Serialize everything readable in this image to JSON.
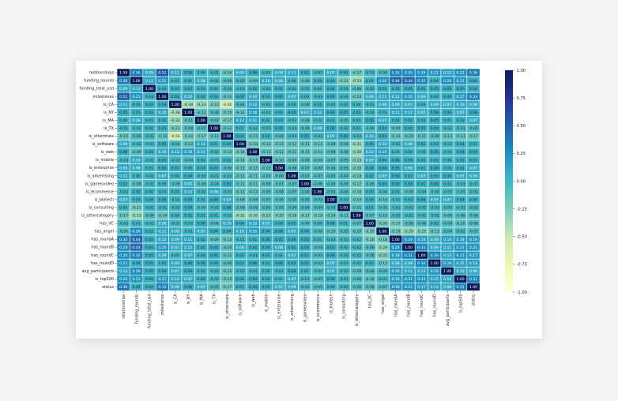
{
  "chart_data": {
    "type": "heatmap",
    "title": "",
    "xlabel": "",
    "ylabel": "",
    "labels": [
      "relationships",
      "funding_rounds",
      "funding_total_usd",
      "milestones",
      "is_CA",
      "is_NY",
      "is_MA",
      "is_TX",
      "is_otherstate",
      "is_software",
      "is_web",
      "is_mobile",
      "is_enterprise",
      "is_advertising",
      "is_gamesvideo",
      "is_ecommerce",
      "is_biotech",
      "is_consulting",
      "is_othercategory",
      "has_VC",
      "has_angel",
      "has_roundA",
      "has_roundB",
      "has_roundC",
      "has_roundD",
      "avg_participants",
      "is_top500",
      "status"
    ],
    "value_range": [
      -1,
      1
    ],
    "colorbar_ticks": [
      "1.00",
      "0.75",
      "0.50",
      "0.25",
      "0.00",
      "-0.25",
      "-0.50",
      "-0.75",
      "-1.00"
    ],
    "colorscale": [
      "#ffffd9",
      "#edf8b1",
      "#c7e9b4",
      "#7fcdbb",
      "#41b6c4",
      "#1d91c0",
      "#225ea8",
      "#253494",
      "#081d58"
    ],
    "values": [
      [
        1.0,
        0.36,
        0.09,
        0.51,
        0.11,
        0.05,
        0.0,
        -0.01,
        -0.16,
        0.09,
        0.06,
        -0.03,
        0.09,
        0.11,
        0.02,
        -0.03,
        0.07,
        0.0,
        -0.17,
        -0.03,
        -0.06,
        0.32,
        0.29,
        0.26,
        0.21,
        0.12,
        0.22,
        0.36
      ],
      [
        0.36,
        1.0,
        0.12,
        0.21,
        0.01,
        0.01,
        0.08,
        -0.02,
        -0.06,
        -0.02,
        -0.09,
        0.1,
        0.08,
        0.0,
        -0.08,
        0.02,
        0.03,
        -0.21,
        -0.33,
        0.01,
        0.26,
        0.44,
        0.44,
        0.32,
        0.04,
        0.26,
        0.21,
        0.04
      ],
      [
        0.09,
        0.12,
        1.0,
        0.03,
        0.02,
        0.02,
        0.01,
        0.0,
        -0.02,
        -0.03,
        0.02,
        -0.02,
        0.01,
        -0.02,
        -0.01,
        0.0,
        0.04,
        -0.01,
        -0.06,
        -0.02,
        0.02,
        0.05,
        0.05,
        0.05,
        0.05,
        0.05,
        0.05,
        0.04
      ],
      [
        0.51,
        0.21,
        0.03,
        1.0,
        0.04,
        0.1,
        0.02,
        0.03,
        -0.12,
        0.05,
        0.1,
        0.03,
        0.05,
        0.07,
        0.0,
        -0.01,
        0.05,
        -0.01,
        -0.14,
        0.09,
        0.11,
        0.12,
        0.2,
        0.09,
        0.02,
        0.04,
        0.17,
        0.33
      ],
      [
        0.11,
        0.01,
        0.02,
        0.04,
        1.0,
        -0.38,
        -0.33,
        -0.23,
        -0.56,
        -0.04,
        0.12,
        -0.02,
        0.03,
        0.0,
        -0.06,
        0.02,
        -0.02,
        -0.02,
        0.0,
        -0.01,
        0.08,
        0.09,
        0.07,
        0.0,
        0.09,
        0.07,
        0.1,
        0.08
      ],
      [
        0.05,
        0.01,
        0.02,
        0.1,
        -0.38,
        1.0,
        -0.11,
        -0.08,
        -0.19,
        -0.12,
        0.16,
        -0.04,
        0.0,
        0.04,
        0.07,
        0.12,
        0.04,
        0.05,
        0.02,
        -0.02,
        -0.01,
        0.11,
        0.11,
        0.07,
        0.06,
        0.04,
        0.07,
        0.06
      ],
      [
        0.0,
        0.08,
        0.01,
        0.02,
        -0.33,
        -0.11,
        1.0,
        -0.07,
        -0.17,
        0.13,
        0.11,
        0.02,
        0.03,
        -0.03,
        -0.08,
        -0.02,
        0.01,
        -0.05,
        0.01,
        0.06,
        0.07,
        0.02,
        0.02,
        0.02,
        0.05,
        0.01,
        0.03,
        0.07
      ],
      [
        -0.01,
        -0.02,
        0.0,
        0.03,
        -0.23,
        -0.08,
        -0.07,
        1.0,
        -0.12,
        0.01,
        -0.02,
        -0.03,
        0.05,
        -0.03,
        -0.04,
        0.08,
        0.06,
        -0.02,
        0.01,
        -0.06,
        0.04,
        -0.09,
        0.04,
        0.05,
        0.04,
        -0.02,
        -0.03,
        -0.05
      ],
      [
        -0.16,
        -0.06,
        -0.02,
        -0.12,
        -0.56,
        -0.19,
        -0.17,
        -0.12,
        1.0,
        0.04,
        -0.13,
        0.02,
        -0.06,
        -0.03,
        0.05,
        -0.03,
        0.07,
        0.06,
        -0.03,
        0.1,
        0.04,
        -0.13,
        -0.1,
        -0.11,
        -0.06,
        -0.13,
        -0.13,
        -0.17
      ],
      [
        0.09,
        -0.02,
        -0.03,
        0.05,
        -0.04,
        -0.12,
        0.13,
        0.01,
        0.04,
        1.0,
        -0.18,
        -0.14,
        -0.13,
        -0.12,
        -0.11,
        -0.13,
        -0.09,
        -0.08,
        -0.31,
        0.04,
        0.1,
        -0.01,
        0.08,
        0.02,
        0.03,
        -0.02,
        0.04,
        0.01
      ],
      [
        0.06,
        -0.09,
        0.02,
        0.1,
        0.12,
        0.16,
        0.11,
        -0.02,
        -0.13,
        -0.18,
        1.0,
        -0.13,
        -0.12,
        -0.11,
        -0.11,
        -0.12,
        -0.08,
        -0.06,
        -0.3,
        0.12,
        0.15,
        0.01,
        0.02,
        -0.01,
        0.06,
        -0.01,
        0.04,
        0.04
      ],
      [
        -0.03,
        0.1,
        -0.02,
        0.03,
        -0.02,
        -0.04,
        0.02,
        -0.03,
        0.02,
        -0.14,
        -0.13,
        1.0,
        -0.1,
        -0.09,
        -0.08,
        -0.09,
        -0.07,
        -0.05,
        -0.23,
        0.07,
        0.04,
        0.06,
        0.04,
        0.02,
        0.01,
        0.0,
        0.02,
        0.02
      ],
      [
        0.09,
        0.08,
        0.01,
        0.05,
        0.03,
        0.0,
        0.03,
        0.05,
        -0.06,
        -0.13,
        -0.12,
        -0.1,
        1.0,
        -0.08,
        -0.07,
        -0.08,
        -0.06,
        -0.05,
        -0.2,
        0.04,
        0.06,
        0.05,
        0.09,
        0.01,
        0.06,
        -0.01,
        0.01,
        0.07
      ],
      [
        0.11,
        0.0,
        -0.02,
        0.07,
        0.0,
        0.04,
        -0.03,
        -0.03,
        -0.03,
        -0.12,
        -0.11,
        -0.09,
        -0.08,
        1.0,
        -0.07,
        -0.07,
        -0.05,
        -0.04,
        -0.18,
        0.02,
        0.07,
        0.06,
        0.02,
        0.07,
        0.03,
        0.04,
        0.07,
        0.09
      ],
      [
        0.02,
        -0.08,
        -0.01,
        0.0,
        -0.06,
        0.07,
        -0.08,
        -0.04,
        0.05,
        -0.11,
        -0.11,
        -0.08,
        -0.07,
        -0.07,
        1.0,
        -0.06,
        -0.05,
        -0.04,
        -0.17,
        -0.06,
        0.04,
        0.05,
        0.04,
        0.02,
        0.05,
        0.01,
        -0.03,
        -0.03
      ],
      [
        -0.03,
        0.02,
        0.0,
        -0.01,
        0.02,
        0.12,
        -0.02,
        0.08,
        -0.03,
        -0.13,
        -0.12,
        -0.09,
        -0.08,
        -0.07,
        -0.06,
        1.0,
        -0.05,
        -0.04,
        -0.18,
        0.0,
        -0.06,
        0.01,
        -0.08,
        -0.04,
        -0.04,
        -0.05,
        -0.05,
        -0.05
      ],
      [
        0.07,
        0.03,
        0.04,
        0.05,
        -0.02,
        0.04,
        0.01,
        0.06,
        0.07,
        -0.09,
        -0.08,
        -0.07,
        -0.06,
        -0.05,
        -0.05,
        -0.05,
        1.0,
        -0.03,
        -0.14,
        0.04,
        -0.1,
        -0.03,
        0.03,
        0.06,
        0.07,
        0.07,
        0.04,
        0.0
      ],
      [
        0.0,
        -0.21,
        -0.01,
        -0.01,
        -0.02,
        0.05,
        -0.05,
        -0.02,
        0.06,
        -0.08,
        -0.06,
        -0.05,
        -0.05,
        -0.04,
        -0.04,
        -0.04,
        -0.03,
        1.0,
        -0.11,
        0.01,
        -0.05,
        -0.03,
        -0.02,
        -0.02,
        -0.03,
        -0.03,
        -0.01,
        -0.02
      ],
      [
        -0.17,
        -0.33,
        -0.06,
        -0.14,
        0.0,
        0.02,
        0.01,
        0.01,
        -0.03,
        -0.31,
        -0.3,
        -0.23,
        -0.2,
        -0.18,
        -0.17,
        -0.18,
        -0.14,
        -0.11,
        1.0,
        -0.07,
        -0.1,
        -0.02,
        -0.02,
        -0.02,
        -0.02,
        -0.09,
        -0.06,
        -0.06
      ],
      [
        -0.03,
        0.01,
        -0.02,
        0.09,
        -0.01,
        -0.02,
        0.06,
        -0.06,
        0.1,
        0.04,
        0.12,
        0.07,
        0.04,
        0.02,
        -0.06,
        0.0,
        0.04,
        0.01,
        -0.07,
        1.0,
        -0.2,
        -0.2,
        -0.06,
        -0.06,
        0.02,
        -0.04,
        -0.1,
        -0.06
      ],
      [
        -0.06,
        0.26,
        0.02,
        0.11,
        0.08,
        -0.01,
        0.07,
        0.04,
        0.04,
        0.1,
        0.15,
        0.04,
        0.06,
        0.07,
        0.04,
        -0.06,
        -0.1,
        -0.05,
        -0.1,
        -0.2,
        1.0,
        -0.18,
        -0.29,
        -0.25,
        -0.13,
        -0.04,
        -0.02,
        -0.07
      ],
      [
        0.32,
        0.44,
        0.05,
        0.12,
        0.09,
        0.11,
        0.02,
        -0.09,
        -0.13,
        -0.01,
        0.01,
        0.06,
        0.05,
        0.06,
        0.05,
        0.01,
        -0.03,
        -0.03,
        -0.02,
        -0.2,
        -0.18,
        1.0,
        0.24,
        0.18,
        0.08,
        0.16,
        0.18,
        0.19
      ],
      [
        0.29,
        0.44,
        0.05,
        0.2,
        0.07,
        0.11,
        0.02,
        0.04,
        -0.1,
        0.08,
        0.02,
        0.04,
        0.09,
        0.02,
        0.04,
        -0.08,
        0.03,
        -0.02,
        -0.02,
        -0.06,
        -0.29,
        0.24,
        1.0,
        0.31,
        0.09,
        0.11,
        0.21,
        0.21
      ],
      [
        0.26,
        0.32,
        0.05,
        0.09,
        0.0,
        0.07,
        0.02,
        0.05,
        -0.11,
        0.02,
        -0.01,
        0.02,
        0.01,
        0.07,
        0.02,
        -0.04,
        0.06,
        -0.02,
        -0.02,
        -0.06,
        -0.25,
        0.18,
        0.31,
        1.0,
        0.3,
        0.13,
        0.23,
        0.17
      ],
      [
        0.21,
        0.04,
        0.05,
        0.02,
        0.09,
        0.06,
        0.05,
        0.04,
        -0.06,
        0.03,
        0.06,
        0.01,
        0.06,
        0.03,
        0.05,
        -0.04,
        0.07,
        -0.03,
        -0.02,
        0.02,
        -0.13,
        0.08,
        0.09,
        0.3,
        1.0,
        0.19,
        0.15,
        0.14
      ],
      [
        0.12,
        0.26,
        0.05,
        0.04,
        0.07,
        0.04,
        0.01,
        -0.02,
        -0.13,
        -0.02,
        -0.01,
        0.0,
        -0.01,
        0.04,
        0.01,
        -0.05,
        0.07,
        -0.03,
        -0.09,
        -0.04,
        -0.04,
        0.16,
        0.11,
        0.13,
        0.19,
        1.0,
        0.1,
        0.08
      ],
      [
        0.22,
        0.21,
        0.05,
        0.17,
        0.1,
        0.07,
        0.03,
        -0.03,
        -0.13,
        0.04,
        0.04,
        0.02,
        0.01,
        0.07,
        -0.03,
        -0.05,
        0.04,
        -0.01,
        -0.06,
        -0.1,
        -0.02,
        0.18,
        0.21,
        0.23,
        0.15,
        0.1,
        1.0,
        0.31
      ],
      [
        0.36,
        0.04,
        0.04,
        0.33,
        0.08,
        0.06,
        0.07,
        -0.05,
        -0.17,
        0.01,
        0.04,
        0.02,
        0.07,
        0.09,
        -0.03,
        -0.05,
        0.0,
        -0.02,
        -0.06,
        -0.06,
        -0.07,
        0.19,
        0.21,
        0.17,
        0.14,
        0.08,
        0.31,
        1.0
      ]
    ]
  }
}
